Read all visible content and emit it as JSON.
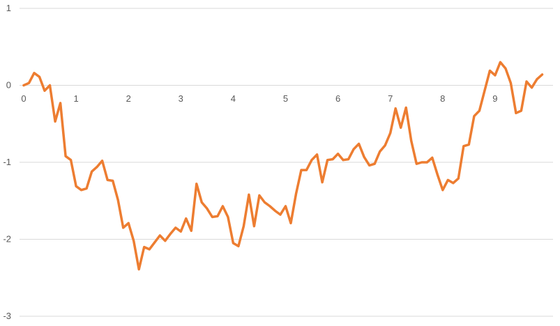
{
  "chart_data": {
    "type": "line",
    "title": "",
    "xlabel": "",
    "ylabel": "",
    "xlim": [
      0,
      10
    ],
    "ylim": [
      -3,
      1
    ],
    "x_ticks": [
      "0",
      "1",
      "2",
      "3",
      "4",
      "5",
      "6",
      "7",
      "8",
      "9"
    ],
    "y_ticks": [
      "1",
      "0",
      "-1",
      "-2",
      "-3"
    ],
    "grid": true,
    "legend": "none",
    "series": [
      {
        "color": "#ED7D31",
        "x": [
          0,
          0.1,
          0.2,
          0.3,
          0.4,
          0.5,
          0.6,
          0.7,
          0.8,
          0.9,
          1.0,
          1.1,
          1.2,
          1.3,
          1.4,
          1.5,
          1.6,
          1.7,
          1.8,
          1.9,
          2.0,
          2.1,
          2.2,
          2.3,
          2.4,
          2.5,
          2.6,
          2.7,
          2.8,
          2.9,
          3.0,
          3.1,
          3.2,
          3.3,
          3.4,
          3.5,
          3.6,
          3.7,
          3.8,
          3.9,
          4.0,
          4.1,
          4.2,
          4.3,
          4.4,
          4.5,
          4.6,
          4.7,
          4.8,
          4.9,
          5.0,
          5.1,
          5.2,
          5.3,
          5.4,
          5.5,
          5.6,
          5.7,
          5.8,
          5.9,
          6.0,
          6.1,
          6.2,
          6.3,
          6.4,
          6.5,
          6.6,
          6.7,
          6.8,
          6.9,
          7.0,
          7.1,
          7.2,
          7.3,
          7.4,
          7.5,
          7.6,
          7.7,
          7.8,
          7.9,
          8.0,
          8.1,
          8.2,
          8.3,
          8.4,
          8.5,
          8.6,
          8.7,
          8.8,
          8.9,
          9.0,
          9.1,
          9.2,
          9.3,
          9.4,
          9.5,
          9.6,
          9.7,
          9.8,
          9.9,
          10.0
        ],
        "values": [
          0.0,
          0.03,
          0.16,
          0.11,
          -0.07,
          0.0,
          -0.47,
          -0.23,
          -0.92,
          -0.97,
          -1.31,
          -1.36,
          -1.34,
          -1.12,
          -1.06,
          -0.98,
          -1.23,
          -1.24,
          -1.49,
          -1.85,
          -1.79,
          -2.02,
          -2.39,
          -2.1,
          -2.13,
          -2.04,
          -1.95,
          -2.02,
          -1.93,
          -1.85,
          -1.9,
          -1.73,
          -1.89,
          -1.28,
          -1.52,
          -1.6,
          -1.71,
          -1.7,
          -1.57,
          -1.71,
          -2.05,
          -2.09,
          -1.83,
          -1.42,
          -1.83,
          -1.43,
          -1.52,
          -1.57,
          -1.63,
          -1.68,
          -1.57,
          -1.79,
          -1.41,
          -1.1,
          -1.1,
          -0.97,
          -0.9,
          -1.26,
          -0.97,
          -0.96,
          -0.89,
          -0.97,
          -0.96,
          -0.83,
          -0.76,
          -0.93,
          -1.04,
          -1.02,
          -0.86,
          -0.78,
          -0.62,
          -0.3,
          -0.55,
          -0.29,
          -0.72,
          -1.02,
          -1.0,
          -1.0,
          -0.94,
          -1.16,
          -1.36,
          -1.23,
          -1.27,
          -1.21,
          -0.79,
          -0.77,
          -0.4,
          -0.33,
          -0.07,
          0.19,
          0.13,
          0.3,
          0.22,
          0.03,
          -0.36,
          -0.33,
          0.05,
          -0.03,
          0.08,
          0.14,
          null
        ]
      }
    ]
  }
}
